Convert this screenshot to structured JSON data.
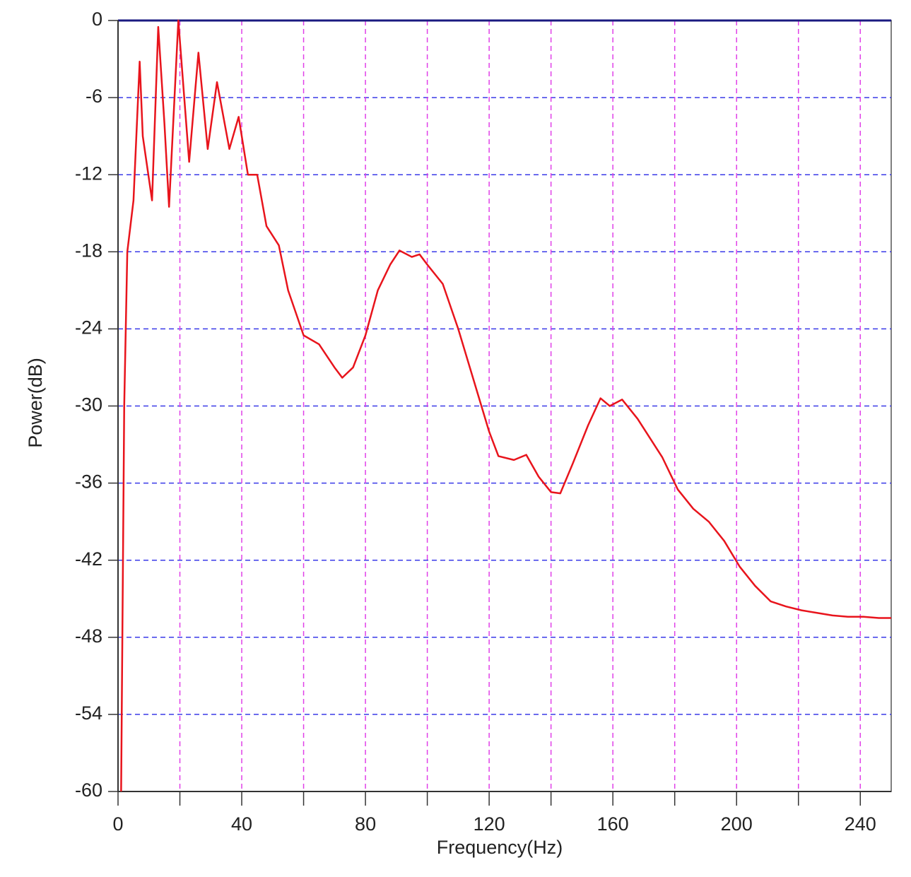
{
  "chart_data": {
    "type": "line",
    "xlabel": "Frequency(Hz)",
    "ylabel": "Power(dB)",
    "x": [
      1,
      2,
      3,
      4,
      5,
      7,
      8,
      11,
      13,
      15,
      16.5,
      19.5,
      23,
      26,
      29,
      32,
      36,
      39,
      42,
      45,
      48,
      52,
      55,
      60,
      65,
      70,
      72.5,
      76,
      80,
      84,
      88,
      91,
      95,
      97.5,
      100,
      105,
      110,
      115,
      120,
      123,
      128,
      132,
      136,
      140,
      143,
      147,
      152,
      156,
      159,
      163,
      168,
      172,
      176,
      181,
      186,
      191,
      196,
      201,
      206,
      211,
      216,
      221,
      226,
      231,
      236,
      241,
      246,
      250
    ],
    "values": [
      -60,
      -30,
      -18,
      -16,
      -14,
      -3.2,
      -9,
      -14,
      -0.5,
      -8,
      -14.5,
      0,
      -11,
      -2.5,
      -10,
      -4.8,
      -10,
      -7.5,
      -12,
      -12,
      -16,
      -17.5,
      -21,
      -24.5,
      -25.2,
      -27,
      -27.8,
      -27,
      -24.5,
      -21,
      -19,
      -17.9,
      -18.4,
      -18.2,
      -19,
      -20.5,
      -24,
      -28,
      -32,
      -33.9,
      -34.2,
      -33.8,
      -35.5,
      -36.7,
      -36.8,
      -34.5,
      -31.5,
      -29.4,
      -30,
      -29.5,
      -31,
      -32.5,
      -34,
      -36.5,
      -38,
      -39,
      -40.5,
      -42.5,
      -44,
      -45.2,
      -45.6,
      -45.9,
      -46.1,
      -46.3,
      -46.4,
      -46.4,
      -46.5,
      -46.5
    ],
    "color": "#e8141c",
    "xlim": [
      0,
      250
    ],
    "ylim": [
      -60,
      0
    ],
    "xticks": [
      0,
      40,
      80,
      120,
      160,
      200,
      240
    ],
    "xminorticks": [
      20,
      60,
      100,
      140,
      180,
      220
    ],
    "yticks": [
      0,
      -6,
      -12,
      -18,
      -24,
      -30,
      -36,
      -42,
      -48,
      -54,
      -60
    ],
    "grid": true,
    "xgrid_color": "#e040e8",
    "ygrid_color": "#3a3ae8"
  }
}
